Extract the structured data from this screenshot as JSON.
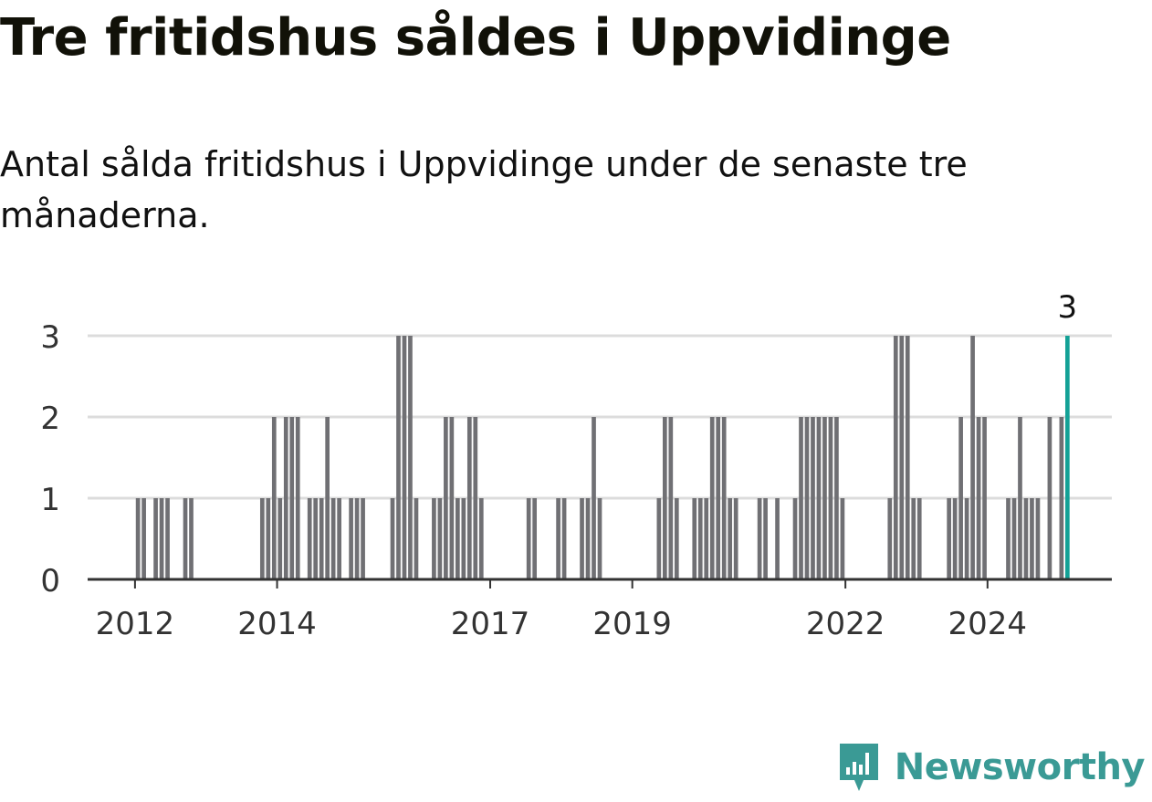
{
  "title": "Tre fritidshus såldes i Uppvidinge",
  "subtitle": "Antal sålda fritidshus i Uppvidinge under de senaste tre månaderna.",
  "brand": {
    "name": "Newsworthy",
    "icon": "newsworthy-logo-icon",
    "color": "#3a9a95"
  },
  "colors": {
    "bar": "#707074",
    "highlight": "#13a196",
    "grid": "#dcdcdc",
    "axis": "#333333"
  },
  "chart_data": {
    "type": "bar",
    "xaxis_type": "date",
    "x_ticks": [
      "2012",
      "2014",
      "2017",
      "2019",
      "2022",
      "2024"
    ],
    "y_ticks": [
      0,
      1,
      2,
      3
    ],
    "ylim": [
      0,
      3
    ],
    "xlim": [
      "2011-05",
      "2025-10"
    ],
    "grid": true,
    "highlight_label": "3",
    "highlight_period": "2025-02",
    "series": [
      {
        "periods": [
          "2012-01",
          "2012-02",
          "2012-04",
          "2012-05",
          "2012-06",
          "2012-09",
          "2012-10",
          "2013-10",
          "2013-11",
          "2013-12",
          "2014-01",
          "2014-02",
          "2014-03",
          "2014-04",
          "2014-06",
          "2014-07",
          "2014-08",
          "2014-09",
          "2014-10",
          "2014-11",
          "2015-01",
          "2015-02",
          "2015-03",
          "2015-08",
          "2015-09",
          "2015-10",
          "2015-11",
          "2015-12",
          "2016-03",
          "2016-04",
          "2016-05",
          "2016-06",
          "2016-07",
          "2016-08",
          "2016-09",
          "2016-10",
          "2016-11",
          "2017-07",
          "2017-08",
          "2017-12",
          "2018-01",
          "2018-04",
          "2018-05",
          "2018-06",
          "2018-07",
          "2019-05",
          "2019-06",
          "2019-07",
          "2019-08",
          "2019-11",
          "2019-12",
          "2020-01",
          "2020-02",
          "2020-03",
          "2020-04",
          "2020-05",
          "2020-06",
          "2020-10",
          "2020-11",
          "2021-01",
          "2021-04",
          "2021-05",
          "2021-06",
          "2021-07",
          "2021-08",
          "2021-09",
          "2021-10",
          "2021-11",
          "2021-12",
          "2022-08",
          "2022-09",
          "2022-10",
          "2022-11",
          "2022-12",
          "2023-01",
          "2023-06",
          "2023-07",
          "2023-08",
          "2023-09",
          "2023-10",
          "2023-11",
          "2023-12",
          "2024-04",
          "2024-05",
          "2024-06",
          "2024-07",
          "2024-08",
          "2024-09",
          "2024-11",
          "2025-01",
          "2025-02"
        ],
        "values": [
          1,
          1,
          1,
          1,
          1,
          1,
          1,
          1,
          1,
          2,
          1,
          2,
          2,
          2,
          1,
          1,
          1,
          2,
          1,
          1,
          1,
          1,
          1,
          1,
          3,
          3,
          3,
          1,
          1,
          1,
          2,
          2,
          1,
          1,
          2,
          2,
          1,
          1,
          1,
          1,
          1,
          1,
          1,
          2,
          1,
          1,
          2,
          2,
          1,
          1,
          1,
          1,
          2,
          2,
          2,
          1,
          1,
          1,
          1,
          1,
          1,
          2,
          2,
          2,
          2,
          2,
          2,
          2,
          1,
          1,
          3,
          3,
          3,
          1,
          1,
          1,
          1,
          2,
          1,
          3,
          2,
          2,
          1,
          1,
          2,
          1,
          1,
          1,
          2,
          2,
          3
        ]
      }
    ]
  }
}
